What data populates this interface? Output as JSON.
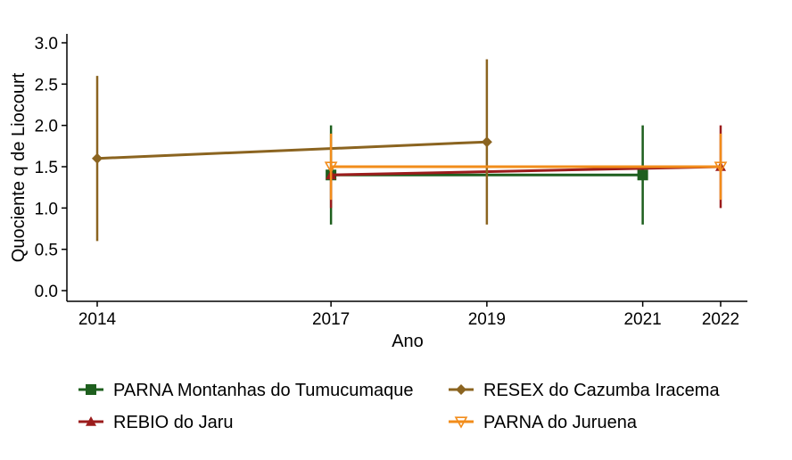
{
  "chart_data": {
    "type": "line",
    "xlabel": "Ano",
    "ylabel": "Quociente q de Liocourt",
    "xlim": [
      2014,
      2022
    ],
    "ylim": [
      0,
      3
    ],
    "x_ticks": [
      2014,
      2017,
      2019,
      2021,
      2022
    ],
    "y_ticks": [
      "0.0",
      "0.5",
      "1.0",
      "1.5",
      "2.0",
      "2.5",
      "3.0"
    ],
    "grid": false,
    "legend_position": "bottom",
    "series": [
      {
        "name": "PARNA Montanhas do Tumucumaque",
        "color": "#1e5f1e",
        "marker": "square",
        "points": [
          {
            "x": 2017,
            "y": 1.4,
            "low": 0.8,
            "high": 2.0
          },
          {
            "x": 2021,
            "y": 1.4,
            "low": 0.8,
            "high": 2.0
          }
        ]
      },
      {
        "name": "REBIO do Jaru",
        "color": "#9b1c1c",
        "marker": "triangle-up",
        "points": [
          {
            "x": 2017,
            "y": 1.4,
            "low": 1.0,
            "high": 1.5
          },
          {
            "x": 2022,
            "y": 1.5,
            "low": 1.0,
            "high": 2.0
          }
        ]
      },
      {
        "name": "RESEX do Cazumba Iracema",
        "color": "#8b6420",
        "marker": "diamond",
        "points": [
          {
            "x": 2014,
            "y": 1.6,
            "low": 0.6,
            "high": 2.6
          },
          {
            "x": 2019,
            "y": 1.8,
            "low": 0.8,
            "high": 2.8
          }
        ]
      },
      {
        "name": "PARNA do Juruena",
        "color": "#f28c1a",
        "marker": "triangle-down",
        "points": [
          {
            "x": 2017,
            "y": 1.5,
            "low": 1.1,
            "high": 1.9
          },
          {
            "x": 2022,
            "y": 1.5,
            "low": 1.1,
            "high": 1.9
          }
        ]
      }
    ]
  }
}
